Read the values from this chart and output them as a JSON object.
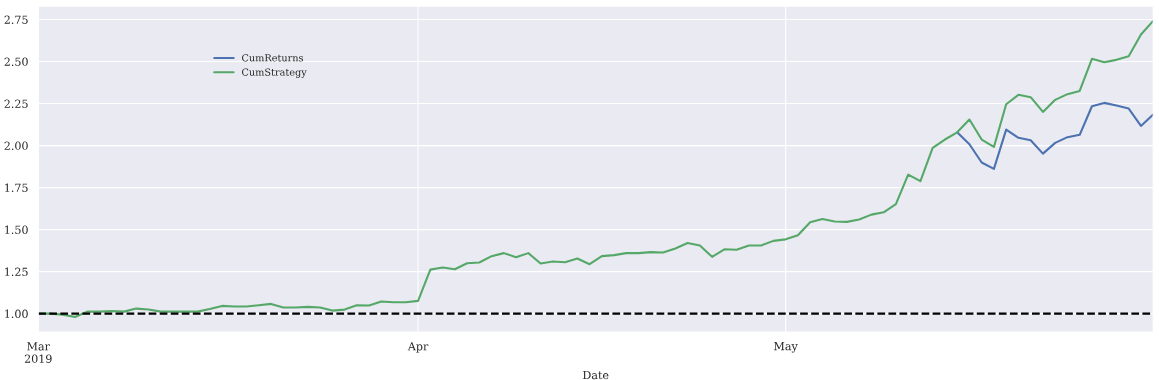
{
  "chart_data": {
    "type": "line",
    "xlabel": "Date",
    "x": [
      "2019-03-01",
      "2019-03-02",
      "2019-03-03",
      "2019-03-04",
      "2019-03-05",
      "2019-03-06",
      "2019-03-07",
      "2019-03-08",
      "2019-03-09",
      "2019-03-10",
      "2019-03-11",
      "2019-03-12",
      "2019-03-13",
      "2019-03-14",
      "2019-03-15",
      "2019-03-16",
      "2019-03-17",
      "2019-03-18",
      "2019-03-19",
      "2019-03-20",
      "2019-03-21",
      "2019-03-22",
      "2019-03-23",
      "2019-03-24",
      "2019-03-25",
      "2019-03-26",
      "2019-03-27",
      "2019-03-28",
      "2019-03-29",
      "2019-03-30",
      "2019-03-31",
      "2019-04-01",
      "2019-04-02",
      "2019-04-03",
      "2019-04-04",
      "2019-04-05",
      "2019-04-06",
      "2019-04-07",
      "2019-04-08",
      "2019-04-09",
      "2019-04-10",
      "2019-04-11",
      "2019-04-12",
      "2019-04-13",
      "2019-04-14",
      "2019-04-15",
      "2019-04-16",
      "2019-04-17",
      "2019-04-18",
      "2019-04-19",
      "2019-04-20",
      "2019-04-21",
      "2019-04-22",
      "2019-04-23",
      "2019-04-24",
      "2019-04-25",
      "2019-04-26",
      "2019-04-27",
      "2019-04-28",
      "2019-04-29",
      "2019-04-30",
      "2019-05-01",
      "2019-05-02",
      "2019-05-03",
      "2019-05-04",
      "2019-05-05",
      "2019-05-06",
      "2019-05-07",
      "2019-05-08",
      "2019-05-09",
      "2019-05-10",
      "2019-05-11",
      "2019-05-12",
      "2019-05-13",
      "2019-05-14",
      "2019-05-15",
      "2019-05-16",
      "2019-05-17",
      "2019-05-18",
      "2019-05-19",
      "2019-05-20",
      "2019-05-21",
      "2019-05-22",
      "2019-05-23",
      "2019-05-24",
      "2019-05-25",
      "2019-05-26",
      "2019-05-27",
      "2019-05-28",
      "2019-05-29",
      "2019-05-30",
      "2019-05-31"
    ],
    "series": [
      {
        "name": "CumReturns",
        "color": "#4c72b0",
        "values": [
          null,
          null,
          null,
          null,
          null,
          null,
          null,
          null,
          null,
          null,
          null,
          null,
          null,
          null,
          null,
          null,
          null,
          null,
          null,
          null,
          null,
          null,
          null,
          null,
          null,
          null,
          null,
          null,
          null,
          null,
          null,
          null,
          null,
          null,
          null,
          null,
          null,
          null,
          null,
          null,
          null,
          null,
          null,
          null,
          null,
          null,
          null,
          null,
          null,
          null,
          null,
          null,
          null,
          null,
          null,
          null,
          null,
          null,
          null,
          null,
          null,
          null,
          null,
          null,
          null,
          null,
          null,
          null,
          null,
          null,
          null,
          null,
          null,
          null,
          null,
          2.079,
          2.008,
          1.899,
          1.861,
          2.095,
          2.046,
          2.032,
          1.952,
          2.016,
          2.05,
          2.064,
          2.234,
          2.254,
          2.238,
          2.22,
          2.117,
          2.185
        ]
      },
      {
        "name": "CumStrategy",
        "color": "#55a868",
        "values": [
          1.0,
          1.0,
          0.994,
          0.98,
          1.012,
          1.012,
          1.016,
          1.012,
          1.03,
          1.025,
          1.012,
          1.012,
          1.012,
          1.012,
          1.027,
          1.046,
          1.042,
          1.042,
          1.05,
          1.058,
          1.036,
          1.036,
          1.04,
          1.036,
          1.018,
          1.024,
          1.05,
          1.048,
          1.072,
          1.068,
          1.068,
          1.076,
          1.262,
          1.274,
          1.264,
          1.3,
          1.304,
          1.342,
          1.36,
          1.336,
          1.36,
          1.298,
          1.31,
          1.306,
          1.328,
          1.294,
          1.342,
          1.348,
          1.36,
          1.36,
          1.366,
          1.364,
          1.388,
          1.42,
          1.405,
          1.338,
          1.383,
          1.38,
          1.405,
          1.405,
          1.433,
          1.442,
          1.466,
          1.544,
          1.563,
          1.548,
          1.546,
          1.56,
          1.589,
          1.603,
          1.651,
          1.827,
          1.788,
          1.986,
          2.036,
          2.079,
          2.155,
          2.036,
          1.992,
          2.246,
          2.302,
          2.288,
          2.2,
          2.272,
          2.306,
          2.325,
          2.516,
          2.496,
          2.51,
          2.532,
          2.661,
          2.742
        ]
      }
    ],
    "xlim": [
      "2019-03-01",
      "2019-05-31"
    ],
    "xticks": [
      {
        "value": "2019-03-01",
        "label": "Mar\n2019"
      },
      {
        "value": "2019-04-01",
        "label": "Apr"
      },
      {
        "value": "2019-05-01",
        "label": "May"
      }
    ],
    "ylim": [
      0.89,
      2.83
    ],
    "yticks": [
      {
        "value": 1,
        "label": "1.00"
      },
      {
        "value": 1.25,
        "label": "1.25"
      },
      {
        "value": 1.5,
        "label": "1.50"
      },
      {
        "value": 1.75,
        "label": "1.75"
      },
      {
        "value": 2,
        "label": "2.00"
      },
      {
        "value": 2.25,
        "label": "2.25"
      },
      {
        "value": 2.5,
        "label": "2.50"
      },
      {
        "value": 2.75,
        "label": "2.75"
      }
    ],
    "ref_lines": [
      {
        "axis": "y",
        "value": 1,
        "color": "#000000",
        "line_style": "dashed"
      }
    ],
    "legend": "top left",
    "grid": true,
    "marker": "none",
    "line_style": "solid"
  }
}
